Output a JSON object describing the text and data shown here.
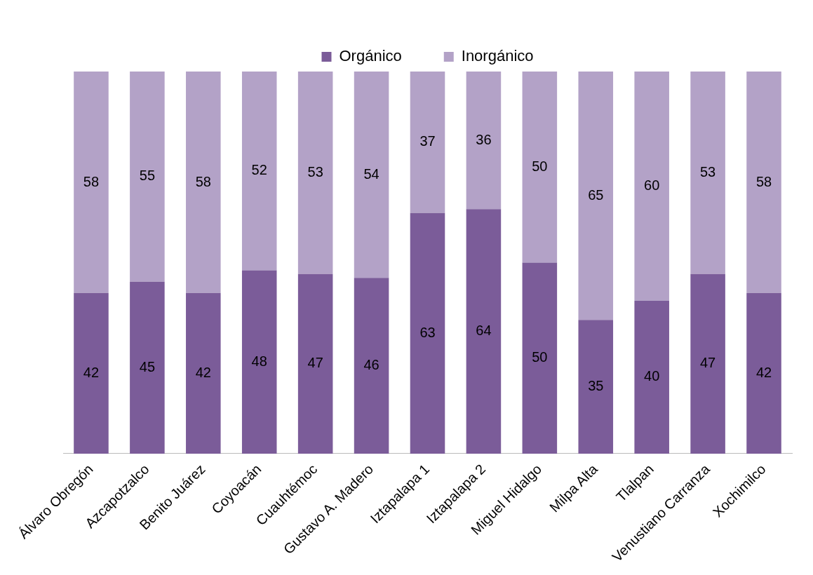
{
  "chart_data": {
    "type": "bar",
    "stacked": true,
    "categories": [
      "Álvaro Obregón",
      "Azcapotzalco",
      "Benito Juárez",
      "Coyoacán",
      "Cuauhtémoc",
      "Gustavo A. Madero",
      "Iztapalapa 1",
      "Iztapalapa 2",
      "Miguel Hidalgo",
      "Milpa Alta",
      "Tlalpan",
      "Venustiano Carranza",
      "Xochimilco"
    ],
    "series": [
      {
        "name": "Orgánico",
        "color": "#7b5c99",
        "values": [
          42,
          45,
          42,
          48,
          47,
          46,
          63,
          64,
          50,
          35,
          40,
          47,
          42
        ]
      },
      {
        "name": "Inorgánico",
        "color": "#b3a2c7",
        "values": [
          58,
          55,
          58,
          52,
          53,
          54,
          37,
          36,
          50,
          65,
          60,
          53,
          58
        ]
      }
    ],
    "ylim": [
      0,
      100
    ],
    "tick_labels": "x",
    "grid": false,
    "legend": "top",
    "data_labels": true
  }
}
